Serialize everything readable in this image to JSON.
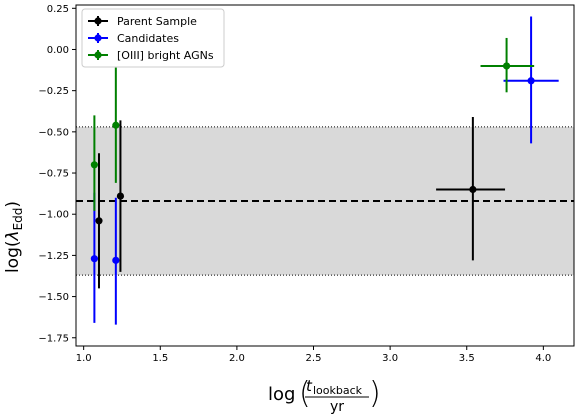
{
  "chart_data": {
    "type": "scatter",
    "xlabel": {
      "main": "log",
      "num": "t",
      "num_sub": "lookback",
      "den": "yr"
    },
    "ylabel": {
      "main": "log(",
      "symbol": "λ",
      "sub": "Edd",
      "close": ")"
    },
    "xlim": [
      0.95,
      4.2
    ],
    "ylim": [
      -1.8,
      0.27
    ],
    "xticks": [
      1.0,
      1.5,
      2.0,
      2.5,
      3.0,
      3.5,
      4.0
    ],
    "xtick_labels": [
      "1.0",
      "1.5",
      "2.0",
      "2.5",
      "3.0",
      "3.5",
      "4.0"
    ],
    "yticks": [
      -1.75,
      -1.5,
      -1.25,
      -1.0,
      -0.75,
      -0.5,
      -0.25,
      0.0,
      0.25
    ],
    "ytick_labels": [
      "−1.75",
      "−1.50",
      "−1.25",
      "−1.00",
      "−0.75",
      "−0.50",
      "−0.25",
      "0.00",
      "0.25"
    ],
    "band": {
      "y_low": -1.37,
      "y_high": -0.47,
      "color": "#d9d9d9"
    },
    "hline": {
      "y": -0.92,
      "style": "dashed"
    },
    "legend_position": "top-left",
    "series": [
      {
        "name": "Parent Sample",
        "color": "#000000",
        "points": [
          {
            "x": 1.1,
            "y": -1.04,
            "xlo": 1.1,
            "xhi": 1.1,
            "ylo": -1.45,
            "yhi": -0.63
          },
          {
            "x": 1.24,
            "y": -0.89,
            "xlo": 1.24,
            "xhi": 1.24,
            "ylo": -1.35,
            "yhi": -0.43
          },
          {
            "x": 3.54,
            "y": -0.85,
            "xlo": 3.3,
            "xhi": 3.75,
            "ylo": -1.28,
            "yhi": -0.41
          }
        ]
      },
      {
        "name": "Candidates",
        "color": "#0000ff",
        "points": [
          {
            "x": 1.07,
            "y": -1.27,
            "xlo": 1.07,
            "xhi": 1.07,
            "ylo": -1.66,
            "yhi": -0.87
          },
          {
            "x": 1.21,
            "y": -1.28,
            "xlo": 1.21,
            "xhi": 1.21,
            "ylo": -1.67,
            "yhi": -0.9
          },
          {
            "x": 3.92,
            "y": -0.19,
            "xlo": 3.74,
            "xhi": 4.1,
            "ylo": -0.57,
            "yhi": 0.2
          }
        ]
      },
      {
        "name": "[OIII] bright AGNs",
        "color": "#008000",
        "points": [
          {
            "x": 1.07,
            "y": -0.7,
            "xlo": 1.07,
            "xhi": 1.07,
            "ylo": -0.98,
            "yhi": -0.4
          },
          {
            "x": 1.21,
            "y": -0.46,
            "xlo": 1.21,
            "xhi": 1.21,
            "ylo": -0.81,
            "yhi": -0.11
          },
          {
            "x": 3.76,
            "y": -0.1,
            "xlo": 3.59,
            "xhi": 3.94,
            "ylo": -0.26,
            "yhi": 0.07
          }
        ]
      }
    ]
  }
}
